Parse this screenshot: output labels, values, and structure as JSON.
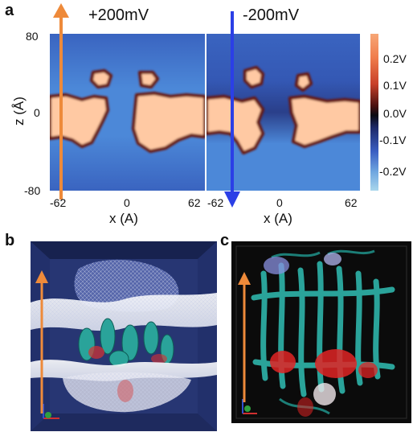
{
  "panels": {
    "a": {
      "letter": "a",
      "left_map": {
        "voltage_label": "+200mV",
        "arrow_color": "#ee8a3a"
      },
      "right_map": {
        "voltage_label": "-200mV",
        "arrow_color": "#2b3fe6"
      },
      "y_axis": {
        "title": "z (Å)",
        "ticks": [
          "80",
          "0",
          "-80"
        ]
      },
      "x_axis": {
        "title": "x (A)",
        "left_ticks": [
          "-62",
          "0",
          "62"
        ],
        "right_ticks": [
          "-62",
          "0",
          "62"
        ]
      },
      "colorbar": {
        "ticks": [
          "0.2V",
          "0.1V",
          "0.0V",
          "-0.1V",
          "-0.2V"
        ]
      }
    },
    "b": {
      "letter": "b",
      "arrow_color": "#ee8a3a"
    },
    "c": {
      "letter": "c",
      "arrow_color": "#ee8a3a"
    }
  },
  "colors": {
    "map_background": "#3d68c2",
    "map_band_light": "#ffcba6",
    "map_band_edge": "#7a1a12",
    "scene_b_bg": "#1e2a5e",
    "scene_c_bg": "#0b0b0b",
    "protein": "#2aa39a"
  }
}
